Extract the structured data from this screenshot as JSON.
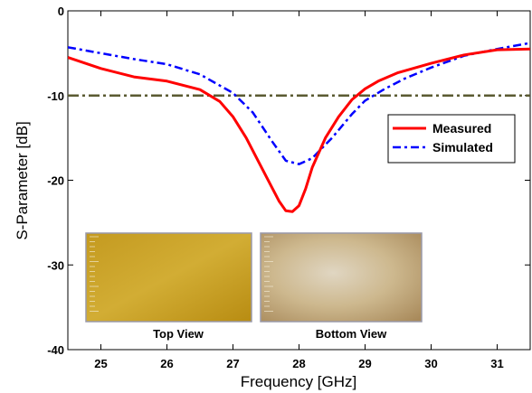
{
  "chart_data": {
    "type": "line",
    "xlabel": "Frequency [GHz]",
    "ylabel": "S-Parameter [dB]",
    "xlim": [
      24.5,
      31.5
    ],
    "ylim": [
      -40,
      0
    ],
    "xticks": [
      "25",
      "26",
      "27",
      "28",
      "29",
      "30",
      "31"
    ],
    "yticks": [
      "0",
      "-10",
      "-20",
      "-30",
      "-40"
    ],
    "legend_position": "right",
    "series": [
      {
        "name": "Measured",
        "color": "#ff0000",
        "style": "solid",
        "x": [
          24.5,
          25.0,
          25.5,
          26.0,
          26.5,
          26.8,
          27.0,
          27.2,
          27.4,
          27.6,
          27.7,
          27.8,
          27.9,
          28.0,
          28.1,
          28.2,
          28.4,
          28.6,
          28.8,
          29.0,
          29.2,
          29.5,
          30.0,
          30.5,
          31.0,
          31.5
        ],
        "y": [
          -5.5,
          -6.8,
          -7.8,
          -8.3,
          -9.3,
          -10.7,
          -12.5,
          -15.0,
          -18.0,
          -21.0,
          -22.5,
          -23.6,
          -23.7,
          -23.0,
          -21.0,
          -18.5,
          -15.0,
          -12.5,
          -10.5,
          -9.2,
          -8.3,
          -7.3,
          -6.2,
          -5.2,
          -4.6,
          -4.5
        ]
      },
      {
        "name": "Simulated",
        "color": "#0000ff",
        "style": "dashdot",
        "x": [
          24.5,
          25.0,
          25.5,
          26.0,
          26.5,
          27.0,
          27.3,
          27.6,
          27.8,
          28.0,
          28.2,
          28.5,
          28.8,
          29.0,
          29.3,
          29.6,
          30.0,
          30.5,
          31.0,
          31.5
        ],
        "y": [
          -4.3,
          -5.0,
          -5.7,
          -6.3,
          -7.5,
          -9.7,
          -12.0,
          -15.5,
          -17.7,
          -18.1,
          -17.4,
          -15.0,
          -12.2,
          -10.6,
          -9.2,
          -8.0,
          -6.7,
          -5.3,
          -4.5,
          -3.8
        ]
      },
      {
        "name": "",
        "color": "#5a5a32",
        "style": "dashdot",
        "x": [
          24.5,
          31.5
        ],
        "y": [
          -10,
          -10
        ]
      }
    ],
    "inset_images": [
      {
        "caption": "Top View",
        "colors": [
          "#c49a20",
          "#d2ad34",
          "#b88c12"
        ]
      },
      {
        "caption": "Bottom View",
        "colors": [
          "#d8cbb2",
          "#c2a878",
          "#ab8c5e"
        ]
      }
    ]
  }
}
